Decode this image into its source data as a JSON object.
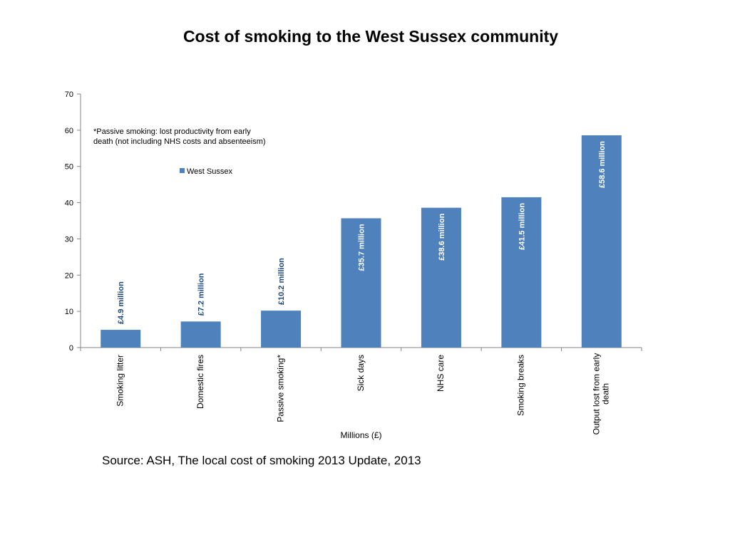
{
  "slide": {
    "title": "Cost of smoking to the West Sussex community",
    "source": "Source: ASH, The local cost of smoking 2013 Update, 2013"
  },
  "chart_data": {
    "type": "bar",
    "title": "",
    "xlabel": "Millions (£)",
    "ylabel": "",
    "ylim": [
      0,
      70
    ],
    "yticks": [
      0,
      10,
      20,
      30,
      40,
      50,
      60,
      70
    ],
    "grid": false,
    "legend_position": "top-left",
    "categories": [
      [
        "Smoking litter"
      ],
      [
        "Domestic fires"
      ],
      [
        "Passive smoking*"
      ],
      [
        "Sick days"
      ],
      [
        "NHS care"
      ],
      [
        "Smoking breaks"
      ],
      [
        "Output lost from early",
        "death"
      ]
    ],
    "series": [
      {
        "name": "West Sussex",
        "color": "#4F81BD",
        "values": [
          4.9,
          7.2,
          10.2,
          35.7,
          38.6,
          41.5,
          58.6
        ],
        "data_labels": [
          "£4.9 million",
          "£7.2 million",
          "£10.2 million",
          "£35.7 million",
          "£38.6 million",
          "£41.5 million",
          "£58.6 million"
        ]
      }
    ],
    "annotations": [
      [
        "*Passive smoking: lost productivity from early",
        "death (not including NHS costs and absenteeism)"
      ]
    ],
    "label_colors": {
      "outside": "#1F497D",
      "inside": "#FFFFFF"
    }
  }
}
